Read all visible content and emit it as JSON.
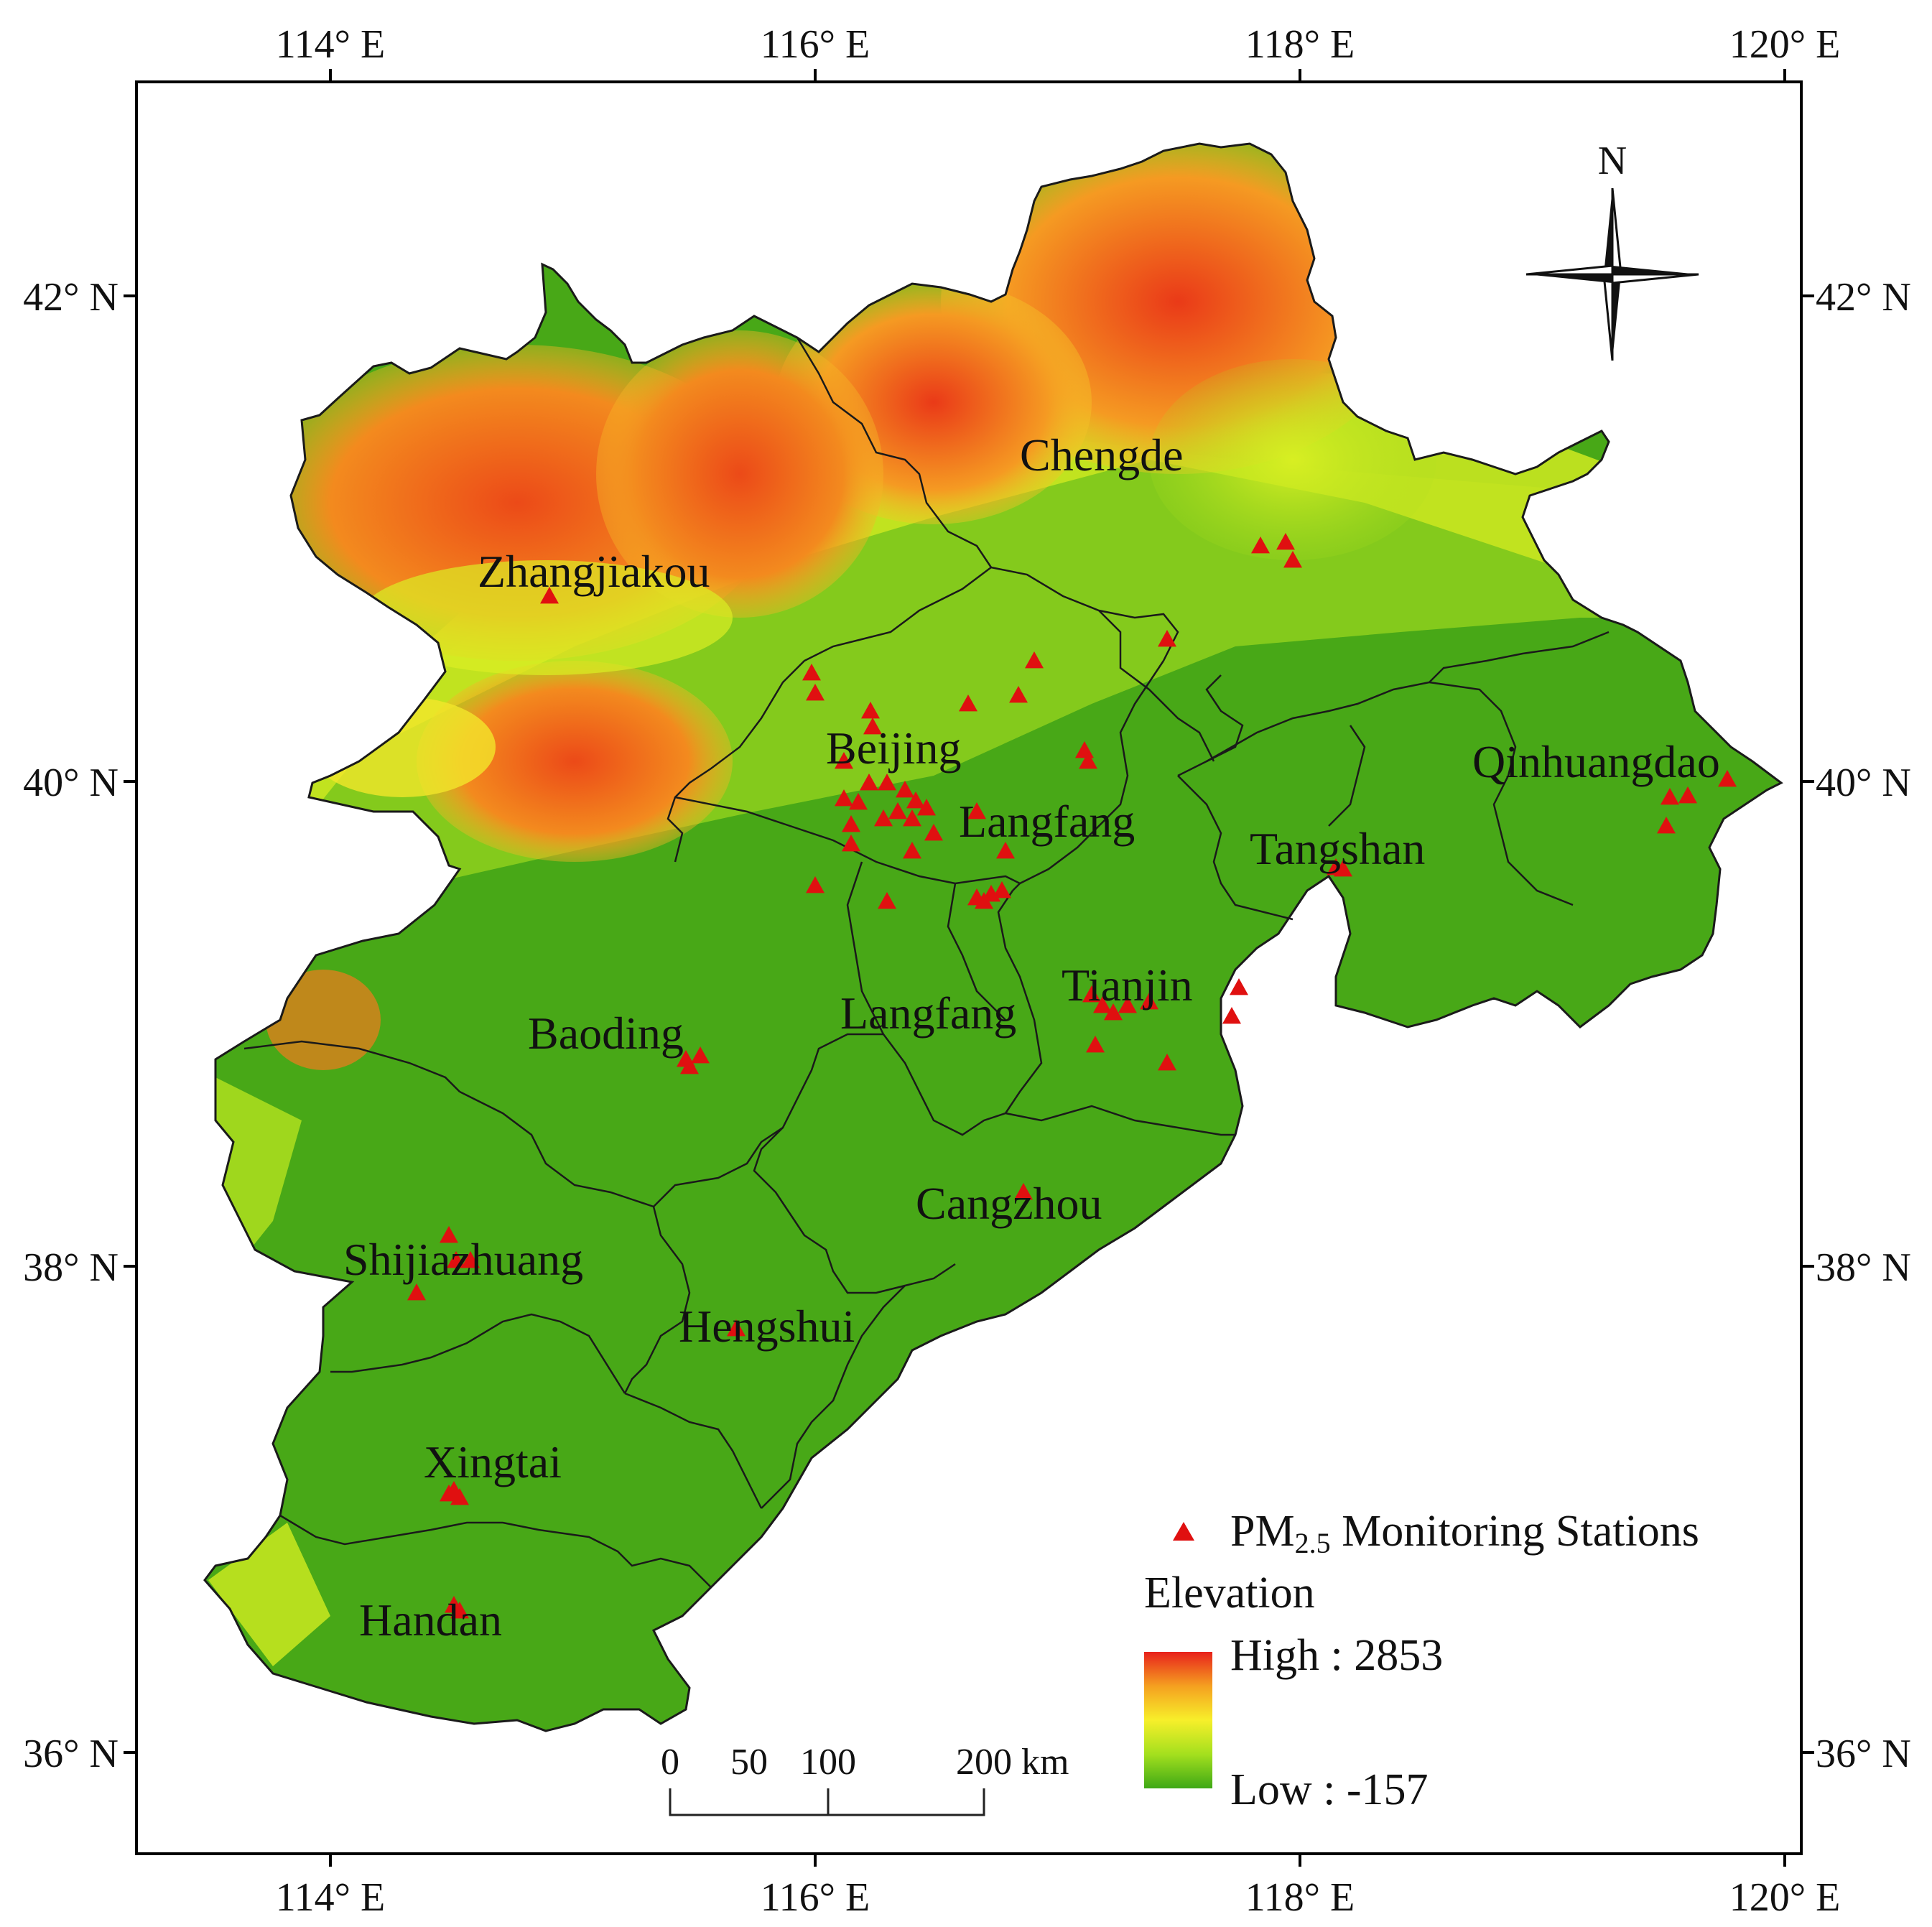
{
  "axes": {
    "lon_ticks": [
      "114° E",
      "116° E",
      "118° E",
      "120° E"
    ],
    "lat_ticks": [
      "42° N",
      "40° N",
      "38° N",
      "36° N"
    ]
  },
  "compass": {
    "label": "N"
  },
  "cities": [
    {
      "name": "Zhangjiakou"
    },
    {
      "name": "Chengde"
    },
    {
      "name": "Beijing"
    },
    {
      "name": "Langfang"
    },
    {
      "name": "Qinhuangdao"
    },
    {
      "name": "Tangshan"
    },
    {
      "name": "Tianjin"
    },
    {
      "name": "Langfang"
    },
    {
      "name": "Baoding"
    },
    {
      "name": "Cangzhou"
    },
    {
      "name": "Shijiazhuang"
    },
    {
      "name": "Hengshui"
    },
    {
      "name": "Xingtai"
    },
    {
      "name": "Handan"
    }
  ],
  "legend": {
    "stations_prefix": "PM",
    "stations_sub": "2.5",
    "stations_suffix": " Monitoring Stations",
    "elevation_title": "Elevation",
    "high_label": "High : 2853",
    "low_label": "Low : -157",
    "ramp_colors": [
      "#e8221c",
      "#f5a020",
      "#f7ef2a",
      "#a4e01e",
      "#3ea816"
    ]
  },
  "scale_bar": {
    "ticks": [
      "0",
      "50",
      "100",
      "200"
    ],
    "unit": "km"
  },
  "colors": {
    "low": "#4aa917",
    "mid": "#d7ee22",
    "high": "#ea3a18",
    "station": "#e01010",
    "frame": "#000000"
  }
}
